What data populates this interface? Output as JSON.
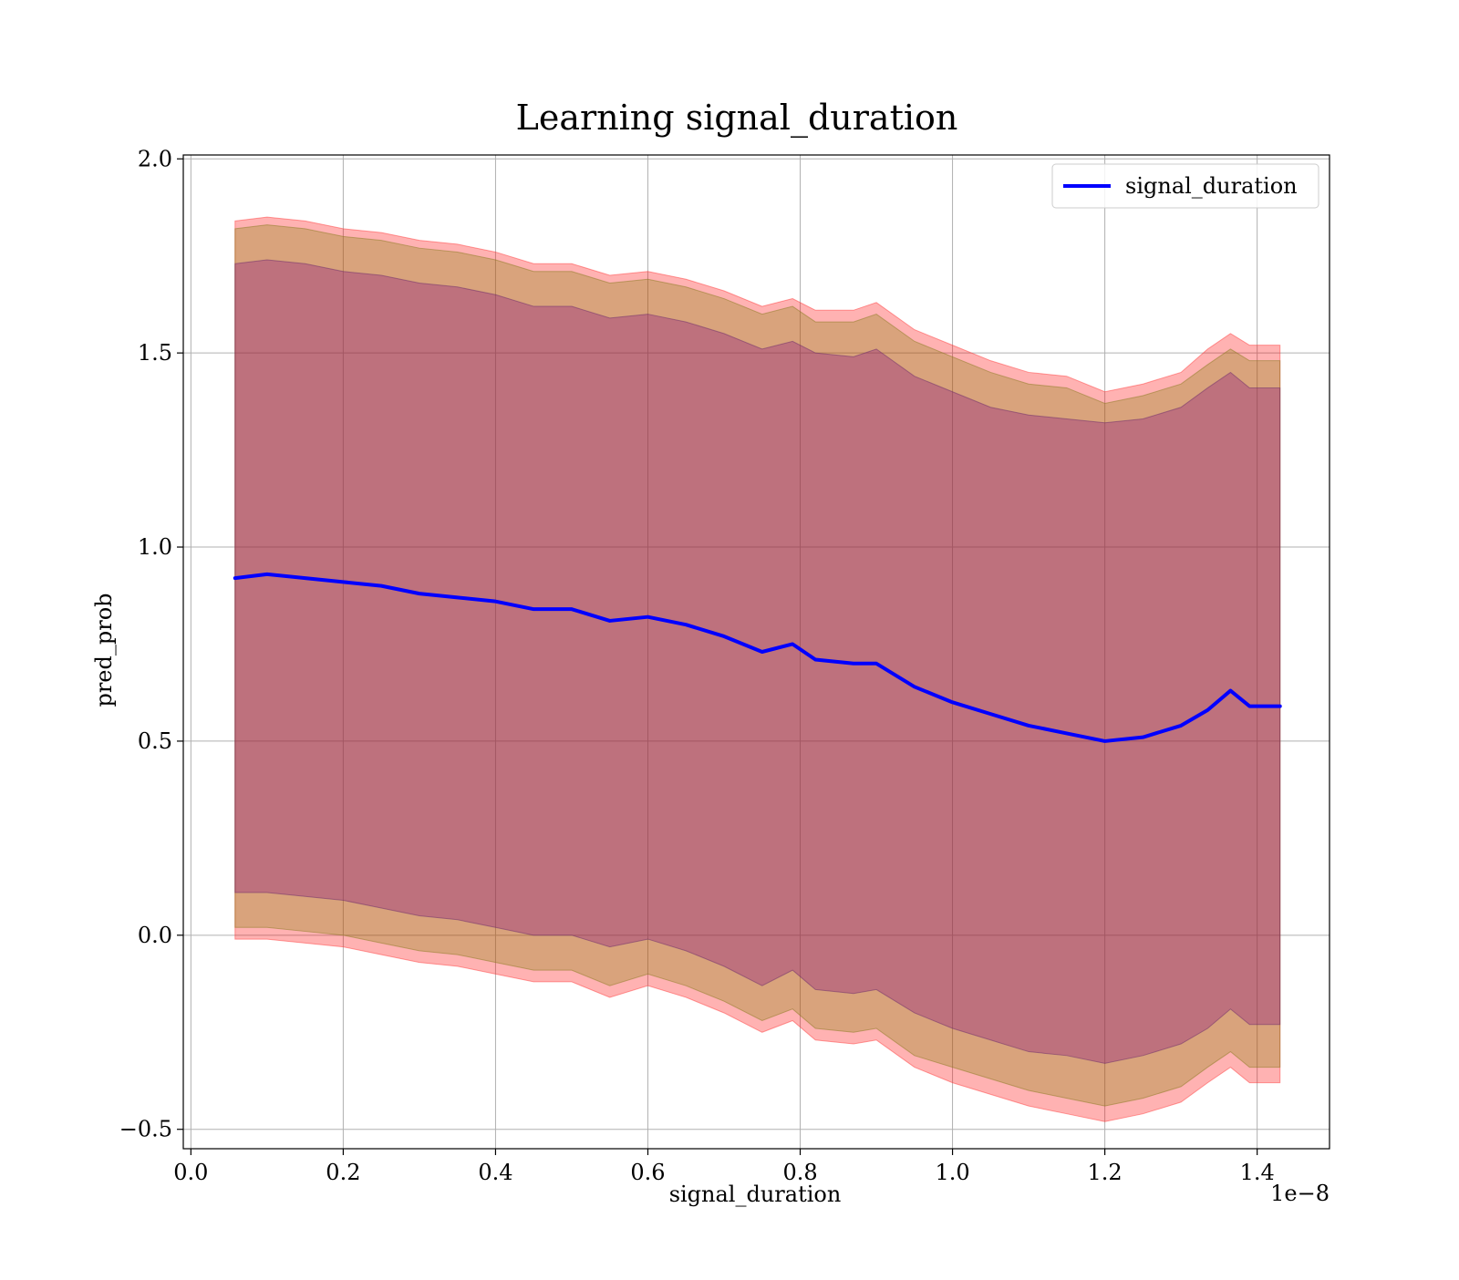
{
  "chart_data": {
    "type": "area",
    "title": "Learning signal_duration",
    "xlabel": "signal_duration",
    "ylabel": "pred_prob",
    "x_offset_text": "1e−8",
    "xlim": [
      -0.01,
      1.495
    ],
    "ylim": [
      -0.55,
      2.01
    ],
    "x_ticks": [
      0.0,
      0.2,
      0.4,
      0.6,
      0.8,
      1.0,
      1.2,
      1.4
    ],
    "x_tick_labels": [
      "0.0",
      "0.2",
      "0.4",
      "0.6",
      "0.8",
      "1.0",
      "1.2",
      "1.4"
    ],
    "y_ticks": [
      -0.5,
      0.0,
      0.5,
      1.0,
      1.5,
      2.0
    ],
    "y_tick_labels": [
      "−0.5",
      "0.0",
      "0.5",
      "1.0",
      "1.5",
      "2.0"
    ],
    "grid": true,
    "legend_position": "top-right",
    "x": [
      0.058,
      0.1,
      0.15,
      0.2,
      0.25,
      0.3,
      0.35,
      0.4,
      0.45,
      0.5,
      0.55,
      0.6,
      0.65,
      0.7,
      0.75,
      0.79,
      0.82,
      0.87,
      0.9,
      0.95,
      1.0,
      1.05,
      1.1,
      1.15,
      1.2,
      1.25,
      1.3,
      1.335,
      1.365,
      1.39,
      1.43
    ],
    "series": [
      {
        "name": "signal_duration",
        "values": [
          0.92,
          0.93,
          0.92,
          0.91,
          0.9,
          0.88,
          0.87,
          0.86,
          0.84,
          0.84,
          0.81,
          0.82,
          0.8,
          0.77,
          0.73,
          0.75,
          0.71,
          0.7,
          0.7,
          0.64,
          0.6,
          0.57,
          0.54,
          0.52,
          0.5,
          0.51,
          0.54,
          0.58,
          0.63,
          0.59,
          0.59
        ]
      }
    ],
    "bands": [
      {
        "lower": [
          -0.01,
          -0.01,
          -0.02,
          -0.03,
          -0.05,
          -0.07,
          -0.08,
          -0.1,
          -0.12,
          -0.12,
          -0.16,
          -0.13,
          -0.16,
          -0.2,
          -0.25,
          -0.22,
          -0.27,
          -0.28,
          -0.27,
          -0.34,
          -0.38,
          -0.41,
          -0.44,
          -0.46,
          -0.48,
          -0.46,
          -0.43,
          -0.38,
          -0.34,
          -0.38,
          -0.38
        ],
        "upper": [
          1.84,
          1.85,
          1.84,
          1.82,
          1.81,
          1.79,
          1.78,
          1.76,
          1.73,
          1.73,
          1.7,
          1.71,
          1.69,
          1.66,
          1.62,
          1.64,
          1.61,
          1.61,
          1.63,
          1.56,
          1.52,
          1.48,
          1.45,
          1.44,
          1.4,
          1.42,
          1.45,
          1.51,
          1.55,
          1.52,
          1.52
        ]
      },
      {
        "lower": [
          0.02,
          0.02,
          0.01,
          0.0,
          -0.02,
          -0.04,
          -0.05,
          -0.07,
          -0.09,
          -0.09,
          -0.13,
          -0.1,
          -0.13,
          -0.17,
          -0.22,
          -0.19,
          -0.24,
          -0.25,
          -0.24,
          -0.31,
          -0.34,
          -0.37,
          -0.4,
          -0.42,
          -0.44,
          -0.42,
          -0.39,
          -0.34,
          -0.3,
          -0.34,
          -0.34
        ],
        "upper": [
          1.82,
          1.83,
          1.82,
          1.8,
          1.79,
          1.77,
          1.76,
          1.74,
          1.71,
          1.71,
          1.68,
          1.69,
          1.67,
          1.64,
          1.6,
          1.62,
          1.58,
          1.58,
          1.6,
          1.53,
          1.49,
          1.45,
          1.42,
          1.41,
          1.37,
          1.39,
          1.42,
          1.47,
          1.51,
          1.48,
          1.48
        ]
      },
      {
        "lower": [
          0.11,
          0.11,
          0.1,
          0.09,
          0.07,
          0.05,
          0.04,
          0.02,
          0.0,
          0.0,
          -0.03,
          -0.01,
          -0.04,
          -0.08,
          -0.13,
          -0.09,
          -0.14,
          -0.15,
          -0.14,
          -0.2,
          -0.24,
          -0.27,
          -0.3,
          -0.31,
          -0.33,
          -0.31,
          -0.28,
          -0.24,
          -0.19,
          -0.23,
          -0.23
        ],
        "upper": [
          1.73,
          1.74,
          1.73,
          1.71,
          1.7,
          1.68,
          1.67,
          1.65,
          1.62,
          1.62,
          1.59,
          1.6,
          1.58,
          1.55,
          1.51,
          1.53,
          1.5,
          1.49,
          1.51,
          1.44,
          1.4,
          1.36,
          1.34,
          1.33,
          1.32,
          1.33,
          1.36,
          1.41,
          1.45,
          1.41,
          1.41
        ]
      }
    ]
  }
}
